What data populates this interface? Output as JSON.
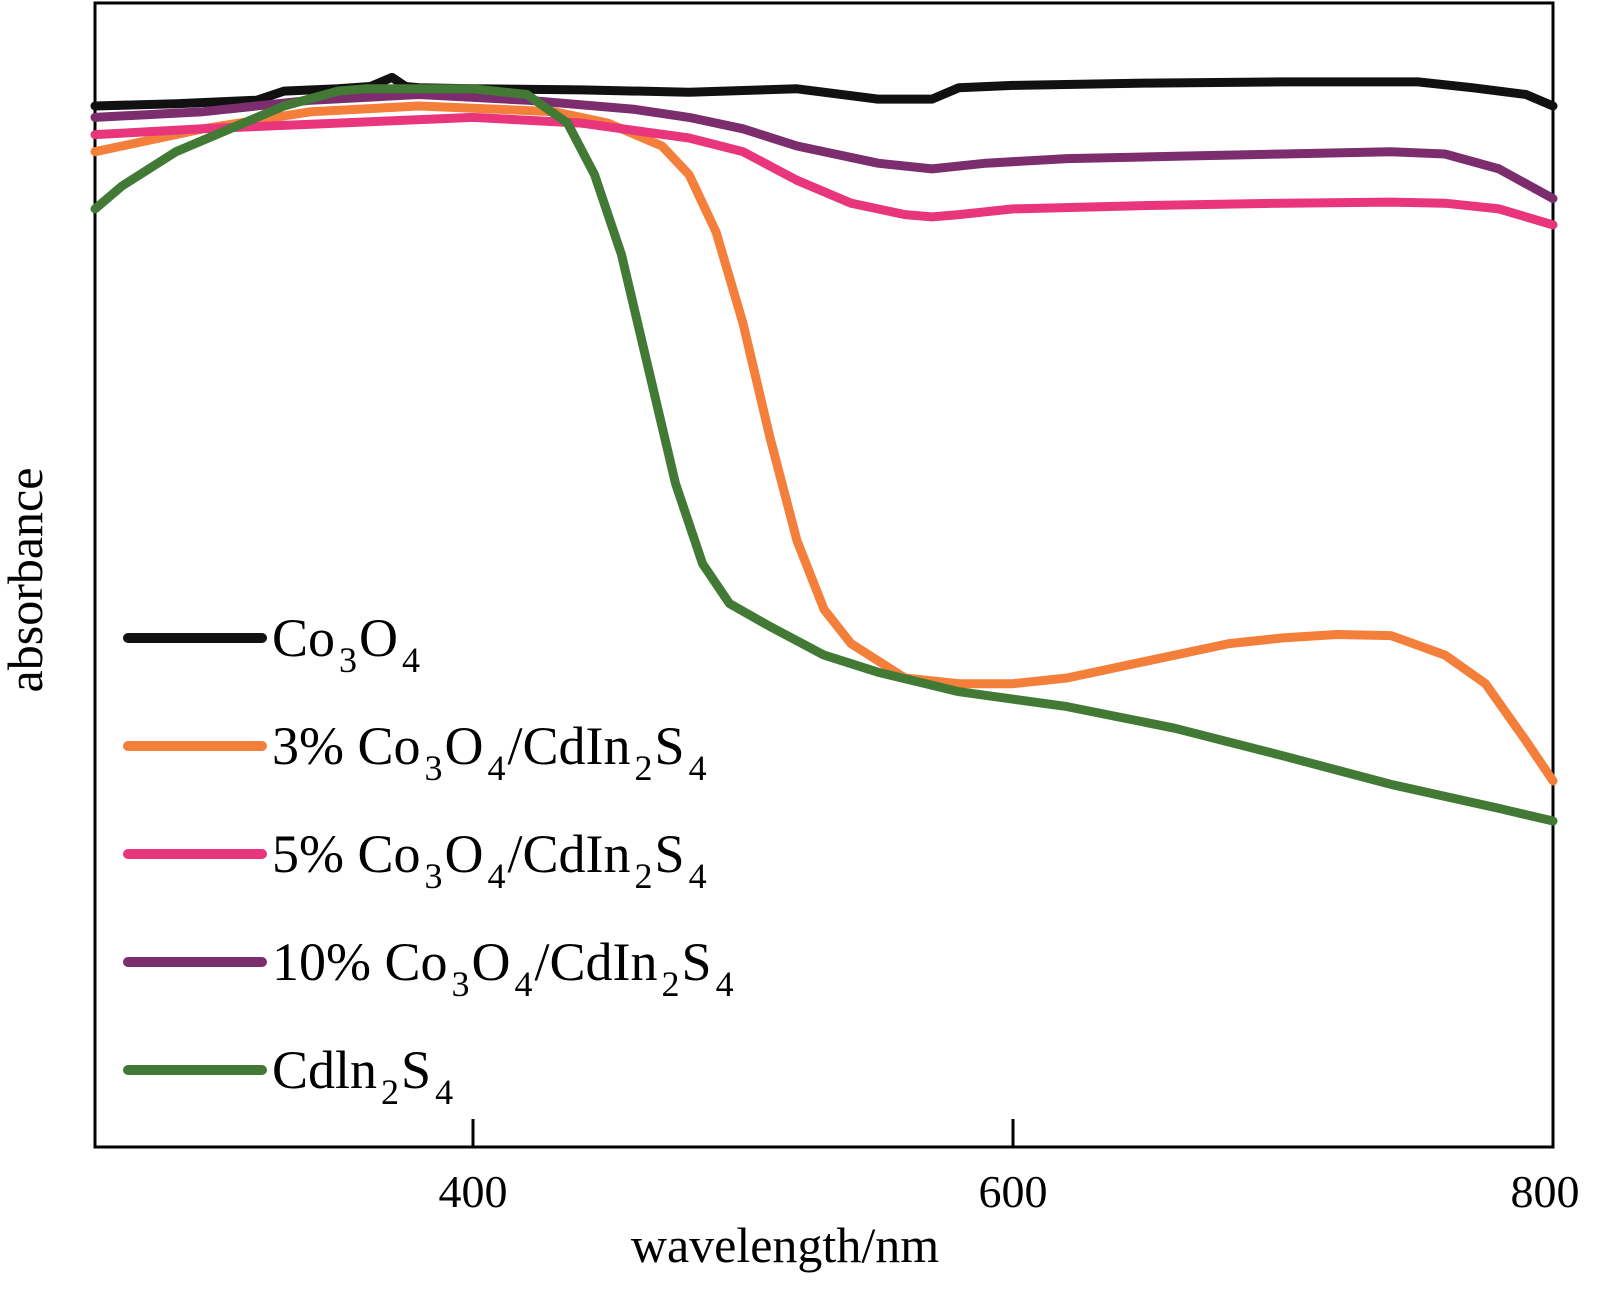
{
  "chart_data": {
    "type": "line",
    "title": "",
    "xlabel": "wavelength/nm",
    "ylabel": "absorbance",
    "xlim": [
      260,
      800
    ],
    "ylim": [
      0,
      1
    ],
    "xticks": [
      400,
      600,
      800
    ],
    "grid": false,
    "legend_position": "bottom-left",
    "series": [
      {
        "name": "Co3O4",
        "legend": [
          "Co",
          "3",
          "O",
          "4",
          "",
          ""
        ],
        "color": "#111111",
        "x": [
          260,
          290,
          320,
          330,
          350,
          362,
          370,
          375,
          380,
          400,
          440,
          480,
          520,
          550,
          570,
          580,
          600,
          650,
          700,
          750,
          770,
          790,
          800
        ],
        "y": [
          0.91,
          0.912,
          0.915,
          0.923,
          0.925,
          0.927,
          0.935,
          0.927,
          0.926,
          0.925,
          0.924,
          0.922,
          0.925,
          0.916,
          0.916,
          0.926,
          0.928,
          0.93,
          0.931,
          0.931,
          0.926,
          0.92,
          0.91
        ]
      },
      {
        "name": "3% Co3O4/CdIn2S4",
        "legend": [
          "3% Co",
          "3",
          "O",
          "4",
          "/CdIn",
          "2",
          "S",
          "4"
        ],
        "color": "#F47F3A",
        "x": [
          260,
          270,
          300,
          340,
          380,
          430,
          450,
          470,
          480,
          490,
          500,
          510,
          520,
          530,
          540,
          560,
          580,
          600,
          620,
          650,
          680,
          700,
          720,
          740,
          760,
          775,
          790,
          800
        ],
        "y": [
          0.87,
          0.875,
          0.89,
          0.905,
          0.91,
          0.905,
          0.895,
          0.875,
          0.85,
          0.8,
          0.72,
          0.62,
          0.53,
          0.47,
          0.44,
          0.41,
          0.405,
          0.405,
          0.41,
          0.425,
          0.44,
          0.445,
          0.448,
          0.447,
          0.43,
          0.405,
          0.355,
          0.32
        ]
      },
      {
        "name": "5% Co3O4/CdIn2S4",
        "legend": [
          "5% Co",
          "3",
          "O",
          "4",
          "/CdIn",
          "2",
          "S",
          "4"
        ],
        "color": "#E8357C",
        "x": [
          260,
          300,
          350,
          400,
          440,
          480,
          500,
          520,
          540,
          560,
          570,
          580,
          600,
          650,
          700,
          740,
          760,
          780,
          800
        ],
        "y": [
          0.885,
          0.89,
          0.895,
          0.9,
          0.895,
          0.882,
          0.87,
          0.845,
          0.825,
          0.815,
          0.813,
          0.815,
          0.82,
          0.823,
          0.825,
          0.826,
          0.825,
          0.82,
          0.806
        ]
      },
      {
        "name": "10% Co3O4/CdIn2S4",
        "legend": [
          "10% Co",
          "3",
          "O",
          "4",
          "/CdIn",
          "2",
          "S",
          "4"
        ],
        "color": "#7B2D6E",
        "x": [
          260,
          300,
          340,
          380,
          420,
          460,
          480,
          500,
          520,
          550,
          570,
          590,
          620,
          660,
          700,
          740,
          760,
          780,
          800
        ],
        "y": [
          0.9,
          0.905,
          0.915,
          0.92,
          0.915,
          0.907,
          0.9,
          0.89,
          0.875,
          0.86,
          0.855,
          0.86,
          0.864,
          0.866,
          0.868,
          0.87,
          0.868,
          0.855,
          0.829
        ]
      },
      {
        "name": "CdIn2S4",
        "legend": [
          "Cdln",
          "2",
          "S",
          "4",
          "",
          ""
        ],
        "color": "#427A35",
        "x": [
          260,
          270,
          290,
          310,
          330,
          350,
          360,
          380,
          400,
          420,
          435,
          445,
          455,
          465,
          475,
          485,
          495,
          510,
          530,
          550,
          580,
          620,
          660,
          700,
          740,
          780,
          800
        ],
        "y": [
          0.82,
          0.84,
          0.87,
          0.89,
          0.91,
          0.923,
          0.925,
          0.925,
          0.925,
          0.92,
          0.895,
          0.85,
          0.78,
          0.68,
          0.58,
          0.51,
          0.475,
          0.455,
          0.43,
          0.415,
          0.398,
          0.385,
          0.366,
          0.342,
          0.317,
          0.296,
          0.285
        ]
      }
    ]
  }
}
